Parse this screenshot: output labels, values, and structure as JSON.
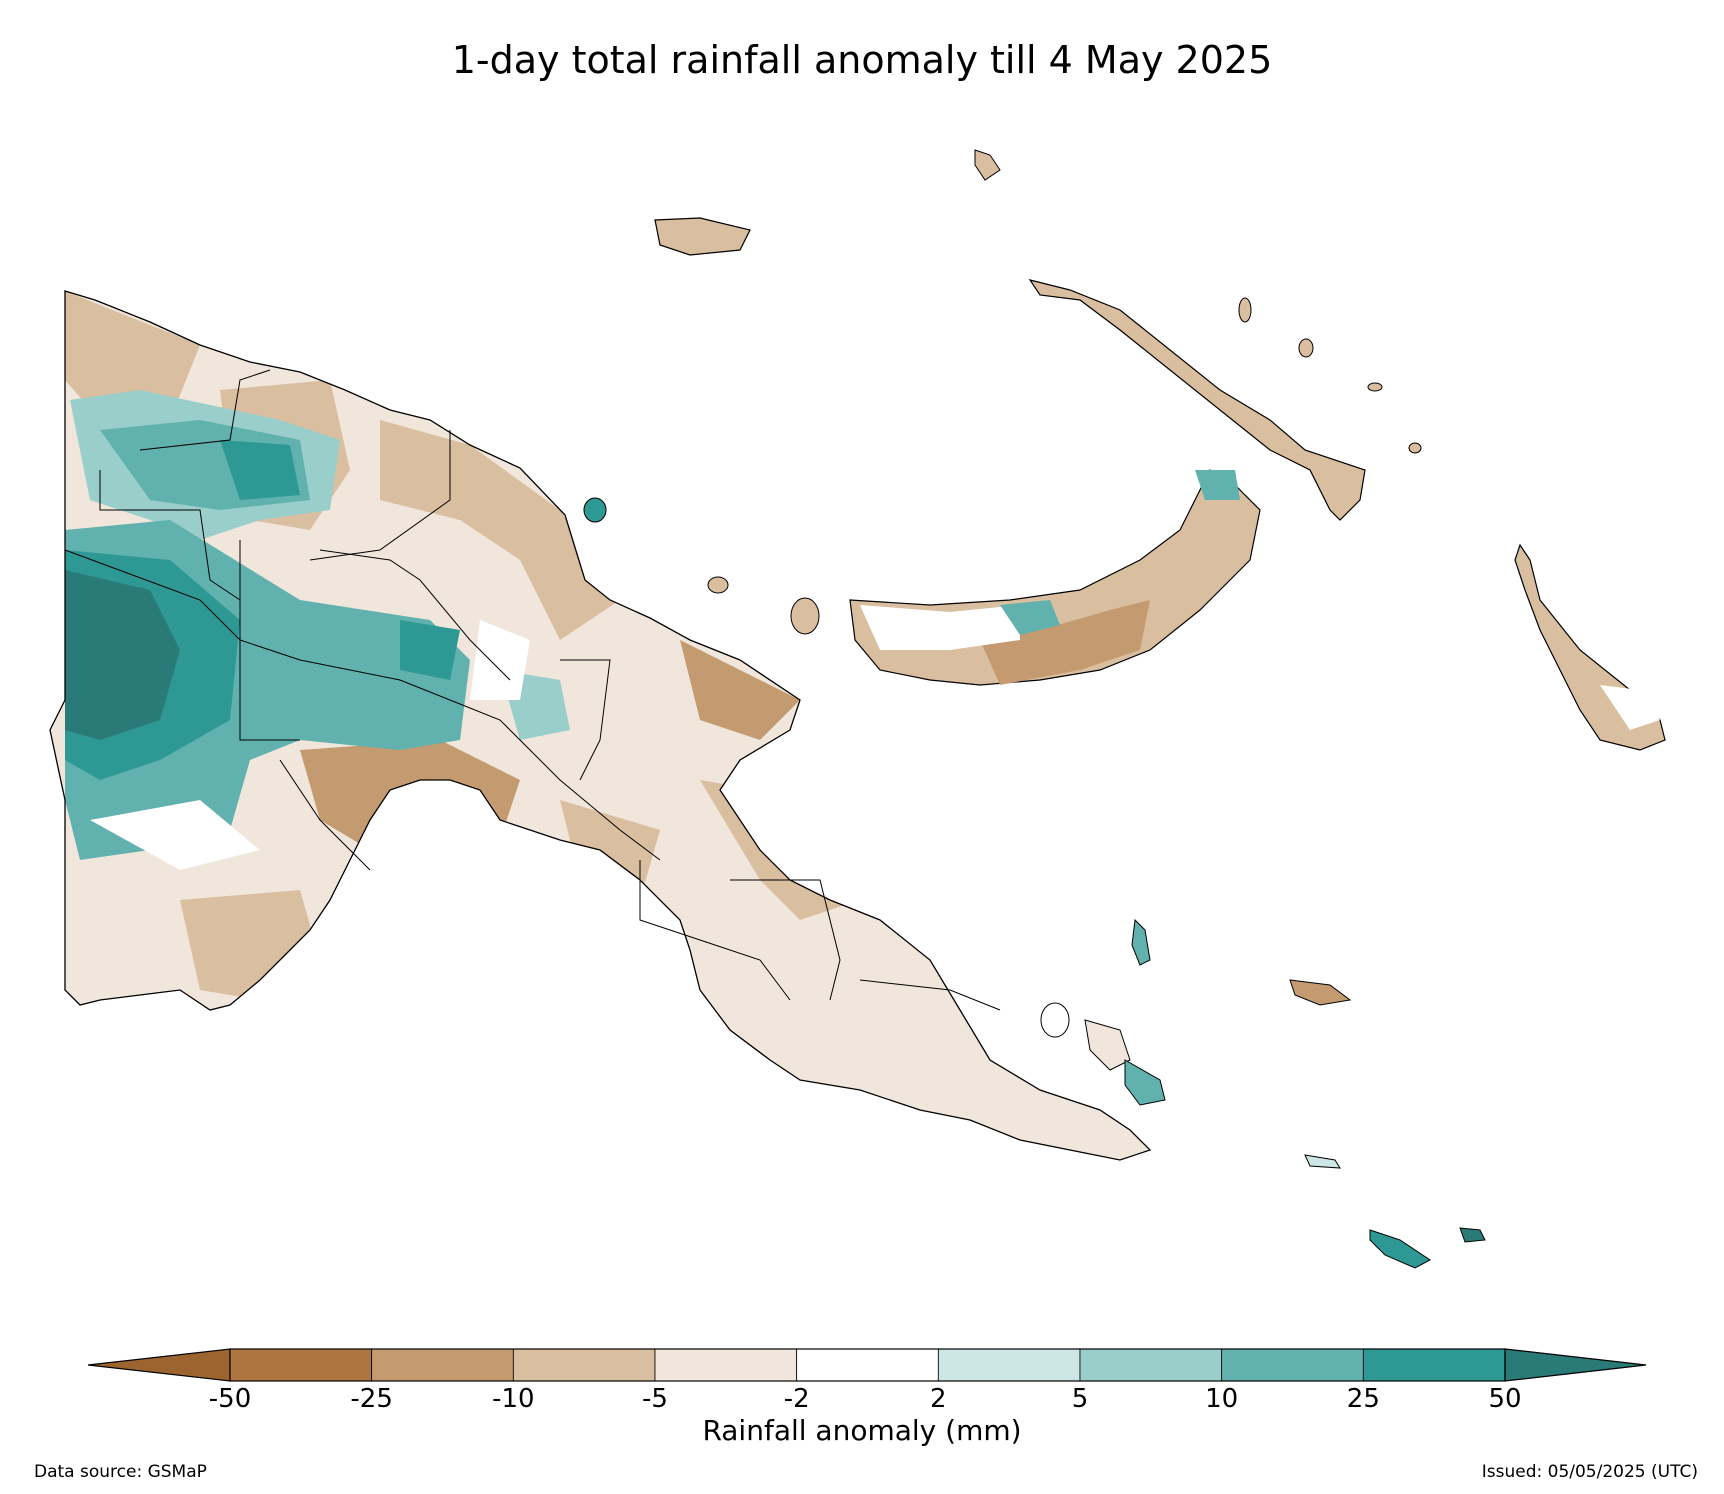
{
  "title": "1-day total rainfall anomaly till 4 May 2025",
  "colorbar": {
    "label": "Rainfall anomaly (mm)",
    "ticks": [
      "-50",
      "-25",
      "-10",
      "-5",
      "-2",
      "2",
      "5",
      "10",
      "25",
      "50"
    ],
    "colors": {
      "lt_-50": "#9c6530",
      "-50_-25": "#ad7640",
      "-25_-10": "#c49a70",
      "-10_-5": "#d9bea0",
      "-5_-2": "#f1e6dc",
      "-2_2": "#ffffff",
      "2_5": "#cde7e6",
      "5_10": "#99cecb",
      "10_25": "#61b1ae",
      "25_50": "#2e9994",
      "gt_50": "#2a7a77"
    }
  },
  "footer": {
    "source": "Data source: GSMaP",
    "issued": "Issued: 05/05/2025 (UTC)"
  }
}
